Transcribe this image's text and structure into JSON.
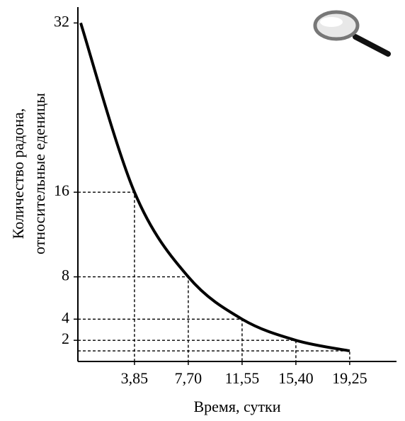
{
  "chart_data": {
    "type": "line",
    "x_label": "Время, сутки",
    "y_label": [
      "Количество радона,",
      "относительные еденицы"
    ],
    "x": [
      0,
      3.85,
      7.7,
      11.55,
      15.4,
      19.25
    ],
    "series": [
      {
        "color": "#000000",
        "values": [
          32,
          16,
          8,
          4,
          2,
          1
        ]
      }
    ],
    "xlim": [
      -0.2,
      22.6
    ],
    "ylim": [
      0,
      33.5
    ],
    "xticks": [
      {
        "value": 3.85,
        "label": "3,85"
      },
      {
        "value": 7.7,
        "label": "7,70"
      },
      {
        "value": 11.55,
        "label": "11,55"
      },
      {
        "value": 15.4,
        "label": "15,40"
      },
      {
        "value": 19.25,
        "label": "19,25"
      }
    ],
    "yticks": [
      2,
      4,
      8,
      16,
      32
    ],
    "guides": true
  }
}
